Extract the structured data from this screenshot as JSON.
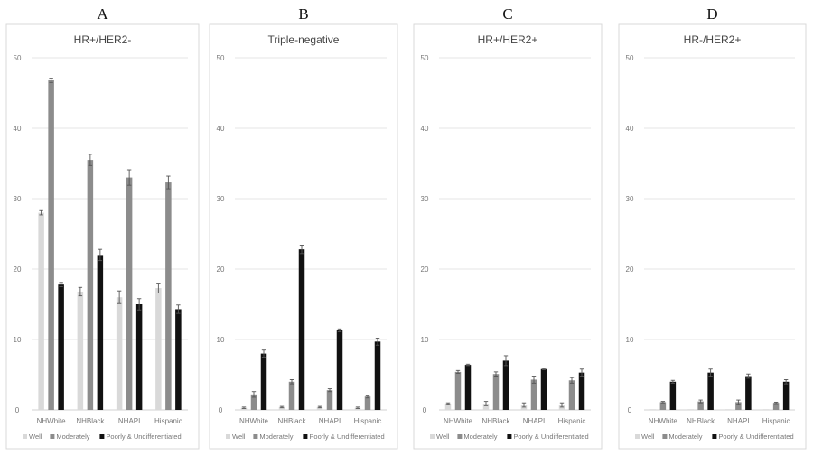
{
  "colors": {
    "Well": "#d9d9d9",
    "Moderately": "#8c8c8c",
    "Poorly & Undifferentiated": "#111111"
  },
  "chart_data": [
    {
      "type": "bar",
      "panel": "A",
      "title": "HR+/HER2-",
      "categories": [
        "NHWhite",
        "NHBlack",
        "NHAPI",
        "Hispanic"
      ],
      "ylim": [
        0,
        50
      ],
      "yticks": [
        0,
        10,
        20,
        30,
        40,
        50
      ],
      "grid": true,
      "legend": "bottom",
      "series": [
        {
          "name": "Well",
          "values": [
            28.0,
            16.8,
            16.0,
            17.3
          ],
          "errors": [
            0.3,
            0.6,
            0.9,
            0.7
          ]
        },
        {
          "name": "Moderately",
          "values": [
            46.8,
            35.5,
            33.0,
            32.3
          ],
          "errors": [
            0.3,
            0.8,
            1.1,
            0.9
          ]
        },
        {
          "name": "Poorly & Undifferentiated",
          "values": [
            17.8,
            22.0,
            15.0,
            14.3
          ],
          "errors": [
            0.3,
            0.8,
            0.8,
            0.6
          ]
        }
      ]
    },
    {
      "type": "bar",
      "panel": "B",
      "title": "Triple-negative",
      "categories": [
        "NHWhite",
        "NHBlack",
        "NHAPI",
        "Hispanic"
      ],
      "ylim": [
        0,
        50
      ],
      "yticks": [
        0,
        10,
        20,
        30,
        40,
        50
      ],
      "grid": true,
      "legend": "bottom",
      "series": [
        {
          "name": "Well",
          "values": [
            0.3,
            0.4,
            0.4,
            0.3
          ],
          "errors": [
            0.1,
            0.1,
            0.1,
            0.1
          ]
        },
        {
          "name": "Moderately",
          "values": [
            2.2,
            4.0,
            2.8,
            1.9
          ],
          "errors": [
            0.4,
            0.3,
            0.2,
            0.2
          ]
        },
        {
          "name": "Poorly & Undifferentiated",
          "values": [
            8.0,
            22.8,
            11.3,
            9.7
          ],
          "errors": [
            0.5,
            0.6,
            0.2,
            0.5
          ]
        }
      ]
    },
    {
      "type": "bar",
      "panel": "C",
      "title": "HR+/HER2+",
      "categories": [
        "NHWhite",
        "NHBlack",
        "NHAPI",
        "Hispanic"
      ],
      "ylim": [
        0,
        50
      ],
      "yticks": [
        0,
        10,
        20,
        30,
        40,
        50
      ],
      "grid": true,
      "legend": "bottom",
      "series": [
        {
          "name": "Well",
          "values": [
            0.9,
            0.9,
            0.7,
            0.7
          ],
          "errors": [
            0.1,
            0.3,
            0.3,
            0.3
          ]
        },
        {
          "name": "Moderately",
          "values": [
            5.4,
            5.1,
            4.3,
            4.2
          ],
          "errors": [
            0.2,
            0.3,
            0.5,
            0.4
          ]
        },
        {
          "name": "Poorly & Undifferentiated",
          "values": [
            6.4,
            7.0,
            5.8,
            5.3
          ],
          "errors": [
            0.1,
            0.7,
            0.1,
            0.5
          ]
        }
      ]
    },
    {
      "type": "bar",
      "panel": "D",
      "title": "HR-/HER2+",
      "categories": [
        "NHWhite",
        "NHBlack",
        "NHAPI",
        "Hispanic"
      ],
      "ylim": [
        0,
        50
      ],
      "yticks": [
        0,
        10,
        20,
        30,
        40,
        50
      ],
      "grid": true,
      "legend": "bottom",
      "series": [
        {
          "name": "Well",
          "values": [
            0.1,
            0.1,
            0.1,
            0.1
          ],
          "errors": [
            0.0,
            0.0,
            0.0,
            0.0
          ]
        },
        {
          "name": "Moderately",
          "values": [
            1.1,
            1.2,
            1.1,
            1.0
          ],
          "errors": [
            0.1,
            0.2,
            0.3,
            0.1
          ]
        },
        {
          "name": "Poorly & Undifferentiated",
          "values": [
            4.0,
            5.3,
            4.8,
            4.0
          ],
          "errors": [
            0.2,
            0.5,
            0.3,
            0.3
          ]
        }
      ]
    }
  ]
}
